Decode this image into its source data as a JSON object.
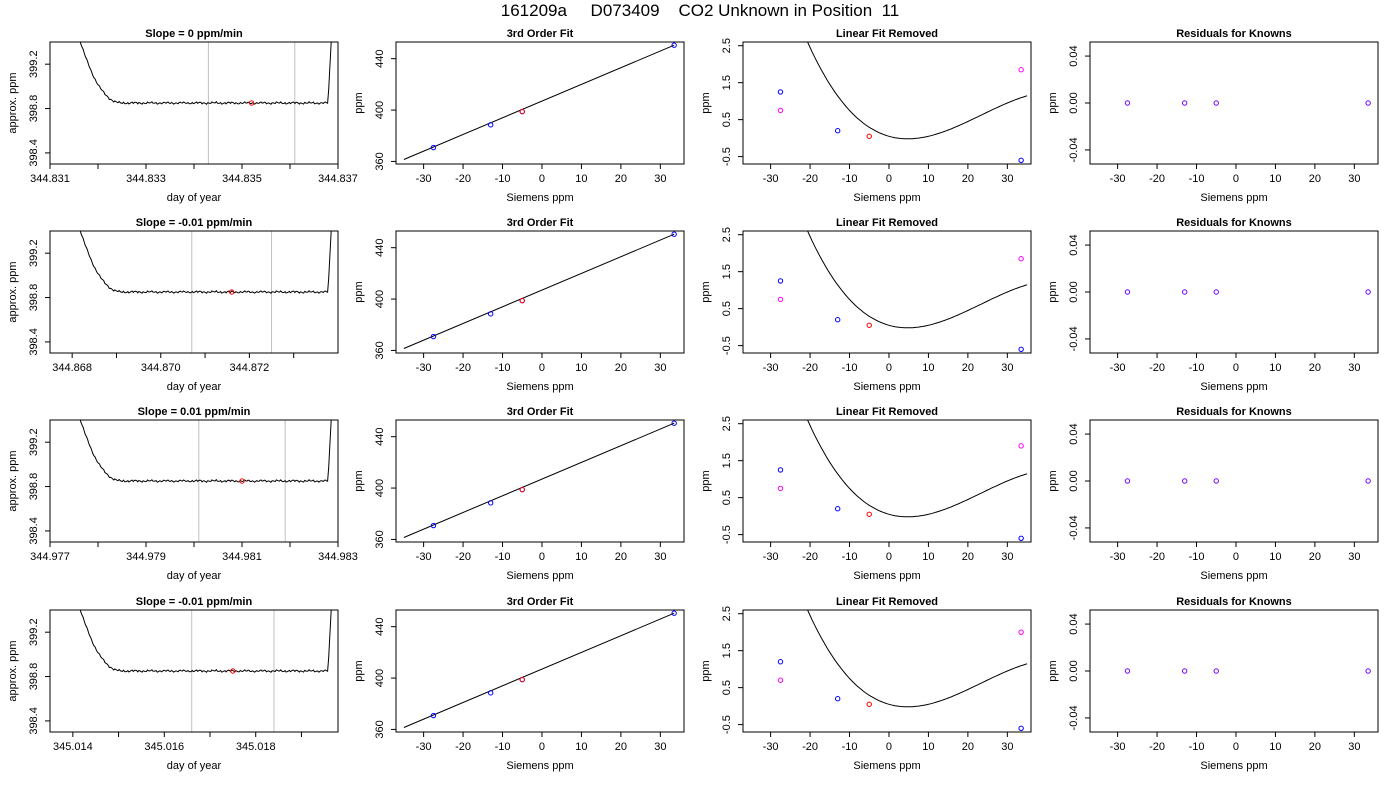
{
  "page_title": "161209a     D073409    CO2 Unknown in Position  11",
  "chart_data": [
    {
      "type": "line",
      "row": 0,
      "col": 0,
      "title": "Slope =  0  ppm/min",
      "xlabel": "day of year",
      "ylabel": "approx. ppm",
      "xlim": [
        344.831,
        344.837
      ],
      "ylim": [
        398.3,
        399.4
      ],
      "x_ticks": [
        344.831,
        344.833,
        344.835,
        344.837
      ],
      "x_minor": [
        344.832,
        344.834,
        344.836
      ],
      "y_ticks": [
        398.4,
        398.8,
        399.2
      ],
      "vlines": [
        344.8343,
        344.8361
      ],
      "marker": {
        "x": 344.8352,
        "y": 398.85
      }
    },
    {
      "type": "scatter",
      "row": 0,
      "col": 1,
      "title": "3rd Order Fit",
      "xlabel": "Siemens ppm",
      "ylabel": "ppm",
      "xlim": [
        -37,
        36
      ],
      "ylim": [
        358,
        453
      ],
      "x_ticks": [
        -30,
        -20,
        -10,
        0,
        10,
        20,
        30
      ],
      "y_ticks": [
        360,
        400,
        440
      ],
      "line": [
        [
          -35,
          361.5
        ],
        [
          33.5,
          450.5
        ]
      ],
      "knowns": [
        [
          -27.5,
          370.8
        ],
        [
          -13,
          388.5
        ],
        [
          -5,
          398.8
        ],
        [
          33.5,
          450.5
        ]
      ],
      "unknown": {
        "x": -5,
        "y": 398.8
      }
    },
    {
      "type": "scatter",
      "row": 0,
      "col": 2,
      "title": "Linear Fit Removed",
      "xlabel": "Siemens ppm",
      "ylabel": "ppm",
      "xlim": [
        -37,
        36
      ],
      "ylim": [
        -0.7,
        2.6
      ],
      "x_ticks": [
        -30,
        -20,
        -10,
        0,
        10,
        20,
        30
      ],
      "y_ticks": [
        -0.5,
        0.5,
        1.5,
        2.5
      ],
      "curve": {
        "c0": 0.05,
        "c1": -0.03,
        "c2": 0.0035,
        "c3": -5e-05
      },
      "knowns": [
        [
          -27.5,
          1.25
        ],
        [
          -13,
          0.2
        ],
        [
          33.5,
          -0.6
        ]
      ],
      "unknown": {
        "x": -5,
        "y": 0.05
      },
      "linear_pts": [
        [
          -27.5,
          0.75
        ],
        [
          33.5,
          1.85
        ]
      ]
    },
    {
      "type": "scatter",
      "row": 0,
      "col": 3,
      "title": "Residuals for Knowns",
      "xlabel": "Siemens ppm",
      "ylabel": "ppm",
      "xlim": [
        -37,
        36
      ],
      "ylim": [
        -0.052,
        0.052
      ],
      "x_ticks": [
        -30,
        -20,
        -10,
        0,
        10,
        20,
        30
      ],
      "y_ticks": [
        -0.04,
        0,
        0.04
      ],
      "y_tick_labels": [
        "-0.04",
        "0.00",
        "0.04"
      ],
      "knowns": [
        [
          -27.5,
          0
        ],
        [
          -13,
          0
        ],
        [
          -5,
          0
        ],
        [
          33.5,
          0
        ]
      ]
    },
    {
      "type": "line",
      "row": 1,
      "col": 0,
      "title": "Slope =  -0.01  ppm/min",
      "xlabel": "day of year",
      "ylabel": "approx. ppm",
      "xlim": [
        344.8675,
        344.874
      ],
      "ylim": [
        398.3,
        399.4
      ],
      "x_ticks": [
        344.868,
        344.87,
        344.872
      ],
      "x_minor": [
        344.869,
        344.871,
        344.873
      ],
      "y_ticks": [
        398.4,
        398.8,
        399.2
      ],
      "vlines": [
        344.8707,
        344.8725
      ],
      "marker": {
        "x": 344.8716,
        "y": 398.85
      }
    },
    {
      "type": "scatter",
      "row": 1,
      "col": 1,
      "title": "3rd Order Fit",
      "xlabel": "Siemens ppm",
      "ylabel": "ppm",
      "xlim": [
        -37,
        36
      ],
      "ylim": [
        358,
        453
      ],
      "x_ticks": [
        -30,
        -20,
        -10,
        0,
        10,
        20,
        30
      ],
      "y_ticks": [
        360,
        400,
        440
      ],
      "line": [
        [
          -35,
          361.5
        ],
        [
          33.5,
          450.5
        ]
      ],
      "knowns": [
        [
          -27.5,
          370.8
        ],
        [
          -13,
          388.5
        ],
        [
          -5,
          398.8
        ],
        [
          33.5,
          450.5
        ]
      ],
      "unknown": {
        "x": -5,
        "y": 398.8
      }
    },
    {
      "type": "scatter",
      "row": 1,
      "col": 2,
      "title": "Linear Fit Removed",
      "xlabel": "Siemens ppm",
      "ylabel": "ppm",
      "xlim": [
        -37,
        36
      ],
      "ylim": [
        -0.7,
        2.6
      ],
      "x_ticks": [
        -30,
        -20,
        -10,
        0,
        10,
        20,
        30
      ],
      "y_ticks": [
        -0.5,
        0.5,
        1.5,
        2.5
      ],
      "curve": {
        "c0": 0.05,
        "c1": -0.03,
        "c2": 0.0035,
        "c3": -5e-05
      },
      "knowns": [
        [
          -27.5,
          1.25
        ],
        [
          -13,
          0.2
        ],
        [
          33.5,
          -0.6
        ]
      ],
      "unknown": {
        "x": -5,
        "y": 0.05
      },
      "linear_pts": [
        [
          -27.5,
          0.75
        ],
        [
          33.5,
          1.85
        ]
      ]
    },
    {
      "type": "scatter",
      "row": 1,
      "col": 3,
      "title": "Residuals for Knowns",
      "xlabel": "Siemens ppm",
      "ylabel": "ppm",
      "xlim": [
        -37,
        36
      ],
      "ylim": [
        -0.052,
        0.052
      ],
      "x_ticks": [
        -30,
        -20,
        -10,
        0,
        10,
        20,
        30
      ],
      "y_ticks": [
        -0.04,
        0,
        0.04
      ],
      "y_tick_labels": [
        "-0.04",
        "0.00",
        "0.04"
      ],
      "knowns": [
        [
          -27.5,
          0
        ],
        [
          -13,
          0
        ],
        [
          -5,
          0
        ],
        [
          33.5,
          0
        ]
      ]
    },
    {
      "type": "line",
      "row": 2,
      "col": 0,
      "title": "Slope =  0.01  ppm/min",
      "xlabel": "day of year",
      "ylabel": "approx. ppm",
      "xlim": [
        344.977,
        344.983
      ],
      "ylim": [
        398.3,
        399.4
      ],
      "x_ticks": [
        344.977,
        344.979,
        344.981,
        344.983
      ],
      "x_minor": [
        344.978,
        344.98,
        344.982
      ],
      "y_ticks": [
        398.4,
        398.8,
        399.2
      ],
      "vlines": [
        344.9801,
        344.9819
      ],
      "marker": {
        "x": 344.981,
        "y": 398.85
      }
    },
    {
      "type": "scatter",
      "row": 2,
      "col": 1,
      "title": "3rd Order Fit",
      "xlabel": "Siemens ppm",
      "ylabel": "ppm",
      "xlim": [
        -37,
        36
      ],
      "ylim": [
        358,
        453
      ],
      "x_ticks": [
        -30,
        -20,
        -10,
        0,
        10,
        20,
        30
      ],
      "y_ticks": [
        360,
        400,
        440
      ],
      "line": [
        [
          -35,
          361.5
        ],
        [
          33.5,
          450.5
        ]
      ],
      "knowns": [
        [
          -27.5,
          370.8
        ],
        [
          -13,
          388.5
        ],
        [
          -5,
          398.8
        ],
        [
          33.5,
          450.5
        ]
      ],
      "unknown": {
        "x": -5,
        "y": 398.8
      }
    },
    {
      "type": "scatter",
      "row": 2,
      "col": 2,
      "title": "Linear Fit Removed",
      "xlabel": "Siemens ppm",
      "ylabel": "ppm",
      "xlim": [
        -37,
        36
      ],
      "ylim": [
        -0.7,
        2.6
      ],
      "x_ticks": [
        -30,
        -20,
        -10,
        0,
        10,
        20,
        30
      ],
      "y_ticks": [
        -0.5,
        0.5,
        1.5,
        2.5
      ],
      "curve": {
        "c0": 0.05,
        "c1": -0.03,
        "c2": 0.0035,
        "c3": -5e-05
      },
      "knowns": [
        [
          -27.5,
          1.25
        ],
        [
          -13,
          0.2
        ],
        [
          33.5,
          -0.6
        ]
      ],
      "unknown": {
        "x": -5,
        "y": 0.05
      },
      "linear_pts": [
        [
          -27.5,
          0.75
        ],
        [
          33.5,
          1.9
        ]
      ]
    },
    {
      "type": "scatter",
      "row": 2,
      "col": 3,
      "title": "Residuals for Knowns",
      "xlabel": "Siemens ppm",
      "ylabel": "ppm",
      "xlim": [
        -37,
        36
      ],
      "ylim": [
        -0.052,
        0.052
      ],
      "x_ticks": [
        -30,
        -20,
        -10,
        0,
        10,
        20,
        30
      ],
      "y_ticks": [
        -0.04,
        0,
        0.04
      ],
      "y_tick_labels": [
        "-0.04",
        "0.00",
        "0.04"
      ],
      "knowns": [
        [
          -27.5,
          0
        ],
        [
          -13,
          0
        ],
        [
          -5,
          0
        ],
        [
          33.5,
          0
        ]
      ]
    },
    {
      "type": "line",
      "row": 3,
      "col": 0,
      "title": "Slope =  -0.01  ppm/min",
      "xlabel": "day of year",
      "ylabel": "approx. ppm",
      "xlim": [
        345.0135,
        345.0198
      ],
      "ylim": [
        398.3,
        399.4
      ],
      "x_ticks": [
        345.014,
        345.016,
        345.018
      ],
      "x_minor": [
        345.015,
        345.017,
        345.019
      ],
      "y_ticks": [
        398.4,
        398.8,
        399.2
      ],
      "vlines": [
        345.0166,
        345.0184
      ],
      "marker": {
        "x": 345.0175,
        "y": 398.85
      }
    },
    {
      "type": "scatter",
      "row": 3,
      "col": 1,
      "title": "3rd Order Fit",
      "xlabel": "Siemens ppm",
      "ylabel": "ppm",
      "xlim": [
        -37,
        36
      ],
      "ylim": [
        358,
        453
      ],
      "x_ticks": [
        -30,
        -20,
        -10,
        0,
        10,
        20,
        30
      ],
      "y_ticks": [
        360,
        400,
        440
      ],
      "line": [
        [
          -35,
          361.5
        ],
        [
          33.5,
          450.5
        ]
      ],
      "knowns": [
        [
          -27.5,
          370.8
        ],
        [
          -13,
          388.5
        ],
        [
          -5,
          398.8
        ],
        [
          33.5,
          450.5
        ]
      ],
      "unknown": {
        "x": -5,
        "y": 398.8
      }
    },
    {
      "type": "scatter",
      "row": 3,
      "col": 2,
      "title": "Linear Fit Removed",
      "xlabel": "Siemens ppm",
      "ylabel": "ppm",
      "xlim": [
        -37,
        36
      ],
      "ylim": [
        -0.7,
        2.6
      ],
      "x_ticks": [
        -30,
        -20,
        -10,
        0,
        10,
        20,
        30
      ],
      "y_ticks": [
        -0.5,
        0.5,
        1.5,
        2.5
      ],
      "curve": {
        "c0": 0.05,
        "c1": -0.03,
        "c2": 0.0035,
        "c3": -5e-05
      },
      "knowns": [
        [
          -27.5,
          1.2
        ],
        [
          -13,
          0.2
        ],
        [
          33.5,
          -0.6
        ]
      ],
      "unknown": {
        "x": -5,
        "y": 0.05
      },
      "linear_pts": [
        [
          -27.5,
          0.7
        ],
        [
          33.5,
          2.0
        ]
      ]
    },
    {
      "type": "scatter",
      "row": 3,
      "col": 3,
      "title": "Residuals for Knowns",
      "xlabel": "Siemens ppm",
      "ylabel": "ppm",
      "xlim": [
        -37,
        36
      ],
      "ylim": [
        -0.052,
        0.052
      ],
      "x_ticks": [
        -30,
        -20,
        -10,
        0,
        10,
        20,
        30
      ],
      "y_ticks": [
        -0.04,
        0,
        0.04
      ],
      "y_tick_labels": [
        "-0.04",
        "0.00",
        "0.04"
      ],
      "knowns": [
        [
          -27.5,
          0
        ],
        [
          -13,
          0
        ],
        [
          -5,
          0
        ],
        [
          33.5,
          0
        ]
      ]
    }
  ],
  "colors": {
    "known": "#0000ff",
    "unknown": "#ff0000",
    "linear": "#ff00ff",
    "residual": "#7000ff",
    "vline": "#c0c0c0",
    "line": "#000000"
  }
}
